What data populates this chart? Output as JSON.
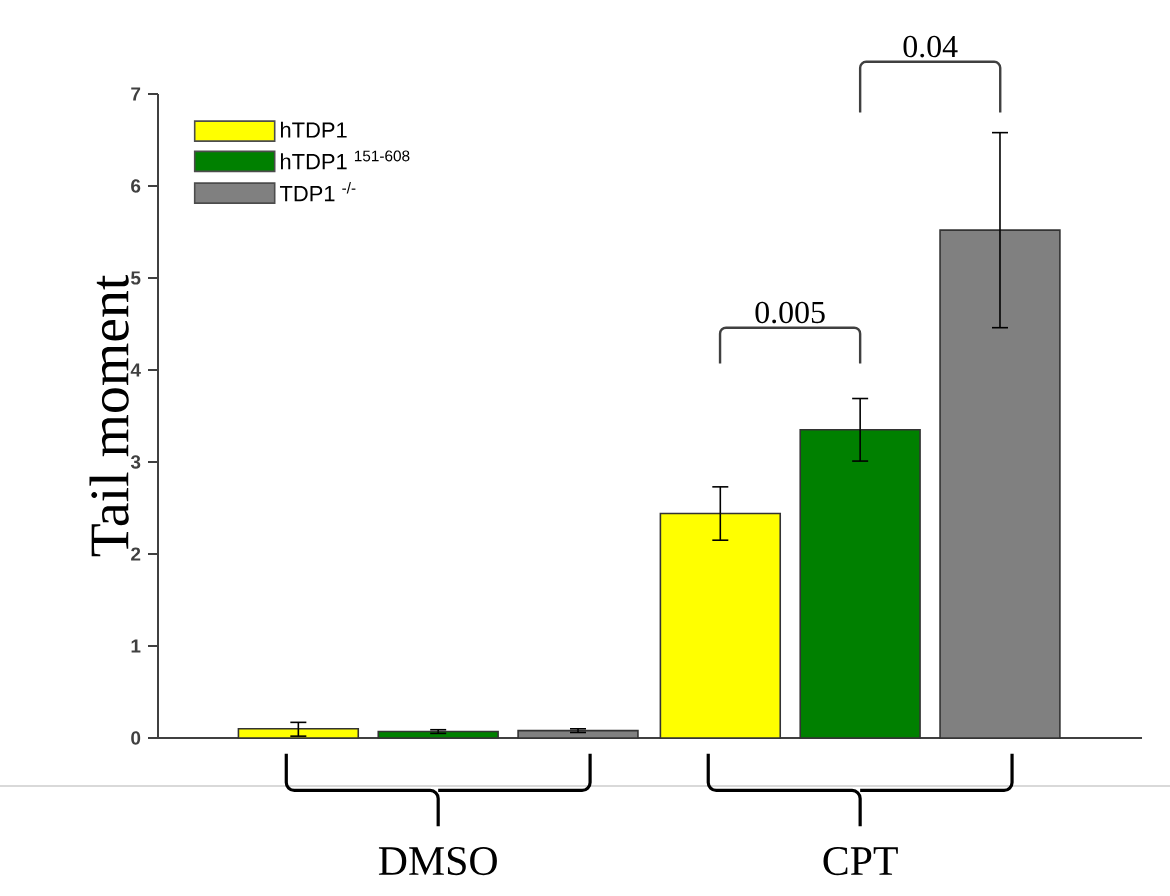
{
  "chart_data": {
    "type": "bar",
    "ylabel": "Tail moment",
    "categories": [
      "DMSO",
      "CPT"
    ],
    "series": [
      {
        "name": "hTDP1",
        "color": "#ffff00",
        "values": [
          0.1,
          2.44
        ],
        "errors": [
          [
            0.02,
            0.17
          ],
          0.29
        ]
      },
      {
        "name": "hTDP1 $^{151-608}$",
        "color": "#008000",
        "values": [
          0.07,
          3.35
        ],
        "errors": [
          0.02,
          0.34
        ]
      },
      {
        "name": "TDP1 $^{-/-}$",
        "color": "#808080",
        "values": [
          0.08,
          5.52
        ],
        "errors": [
          0.02,
          1.06
        ]
      }
    ],
    "ylim": [
      0,
      7
    ],
    "yticks": [
      0,
      1,
      2,
      3,
      4,
      5,
      6,
      7
    ],
    "legend": "top left",
    "annotations": [
      "0.005",
      "0.04"
    ]
  }
}
